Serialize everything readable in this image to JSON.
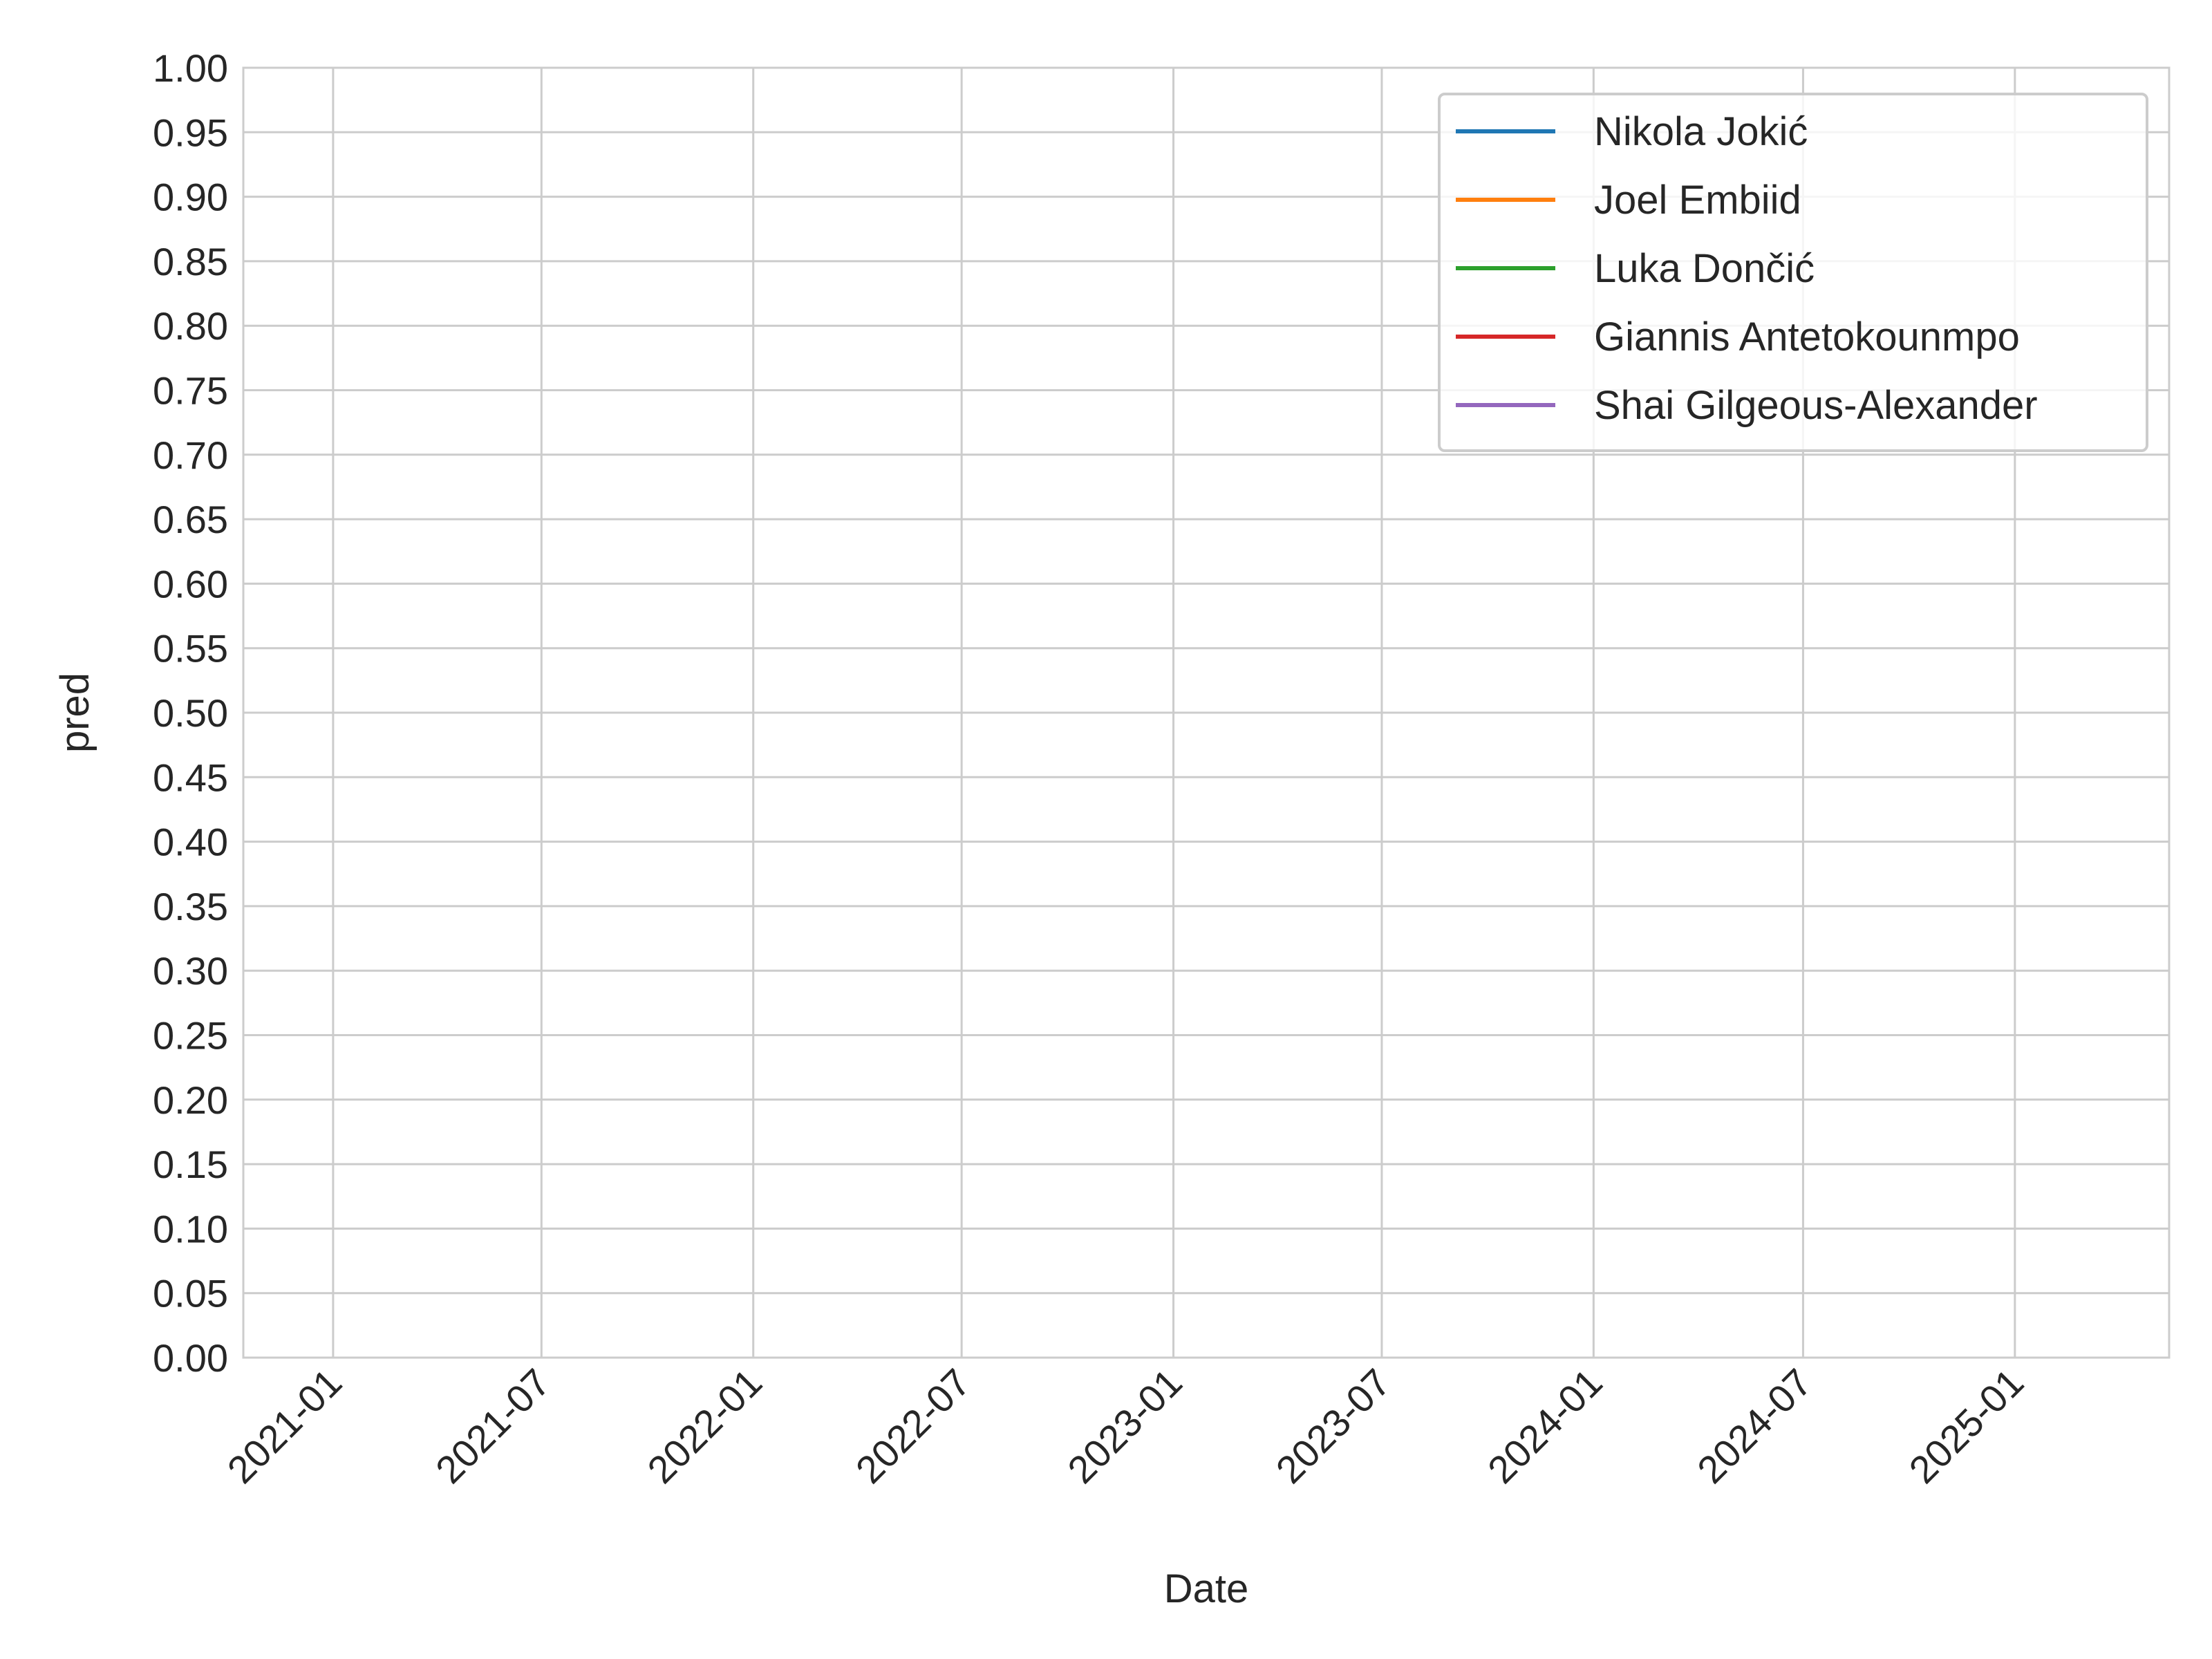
{
  "chart_data": {
    "type": "line",
    "xlabel": "Date",
    "ylabel": "pred",
    "x_ticks": [
      "2021-01",
      "2021-07",
      "2022-01",
      "2022-07",
      "2023-01",
      "2023-07",
      "2024-01",
      "2024-07",
      "2025-01"
    ],
    "xlim": [
      "2020-10-15",
      "2025-05-15"
    ],
    "ylim": [
      0,
      1
    ],
    "y_ticks": [
      0.0,
      0.05,
      0.1,
      0.15,
      0.2,
      0.25,
      0.3,
      0.35,
      0.4,
      0.45,
      0.5,
      0.55,
      0.6,
      0.65,
      0.7,
      0.75,
      0.8,
      0.85,
      0.9,
      0.95,
      1.0
    ],
    "grid": true,
    "legend_position": "top-right",
    "series": [
      {
        "name": "Nikola Jokić",
        "color": "#1f77b4",
        "values": []
      },
      {
        "name": "Joel Embiid",
        "color": "#ff7f0e",
        "values": []
      },
      {
        "name": "Luka Dončić",
        "color": "#2ca02c",
        "values": []
      },
      {
        "name": "Giannis Antetokounmpo",
        "color": "#d62728",
        "values": []
      },
      {
        "name": "Shai Gilgeous-Alexander",
        "color": "#9467bd",
        "values": []
      }
    ]
  }
}
